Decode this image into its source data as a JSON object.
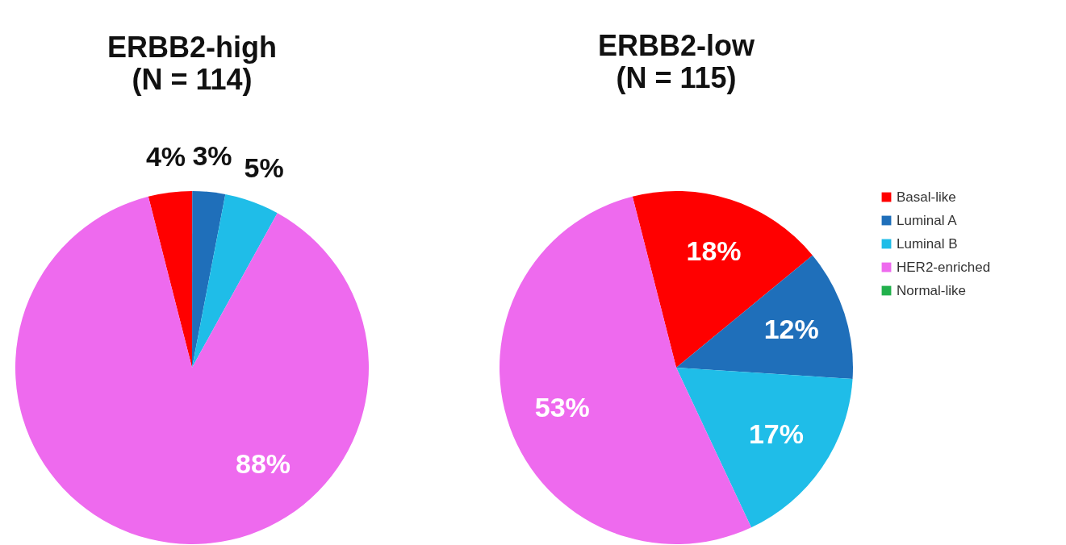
{
  "chart_data": [
    {
      "type": "pie",
      "title": "ERBB2-high",
      "subtitle": "(N = 114)",
      "categories": [
        null,
        null,
        null,
        null,
        null
      ],
      "values": [
        4,
        3,
        5,
        88,
        0
      ],
      "colors": [
        "#ff0000",
        "#1f6fba",
        "#1fbde8",
        "#ee6aee",
        "#22b14c"
      ],
      "value_labels": [
        "4%",
        "3%",
        "5%",
        "88%",
        null
      ],
      "legend": false
    },
    {
      "type": "pie",
      "title": "ERBB2-low",
      "subtitle": "(N = 115)",
      "categories": [
        "Basal-like",
        "Luminal A",
        "Luminal B",
        "HER2-enriched",
        "Normal-like"
      ],
      "values": [
        18,
        12,
        17,
        53,
        0
      ],
      "colors": [
        "#ff0000",
        "#1f6fba",
        "#1fbde8",
        "#ee6aee",
        "#22b14c"
      ],
      "value_labels": [
        "18%",
        "12%",
        "17%",
        "53%",
        null
      ],
      "legend": "top right"
    }
  ]
}
